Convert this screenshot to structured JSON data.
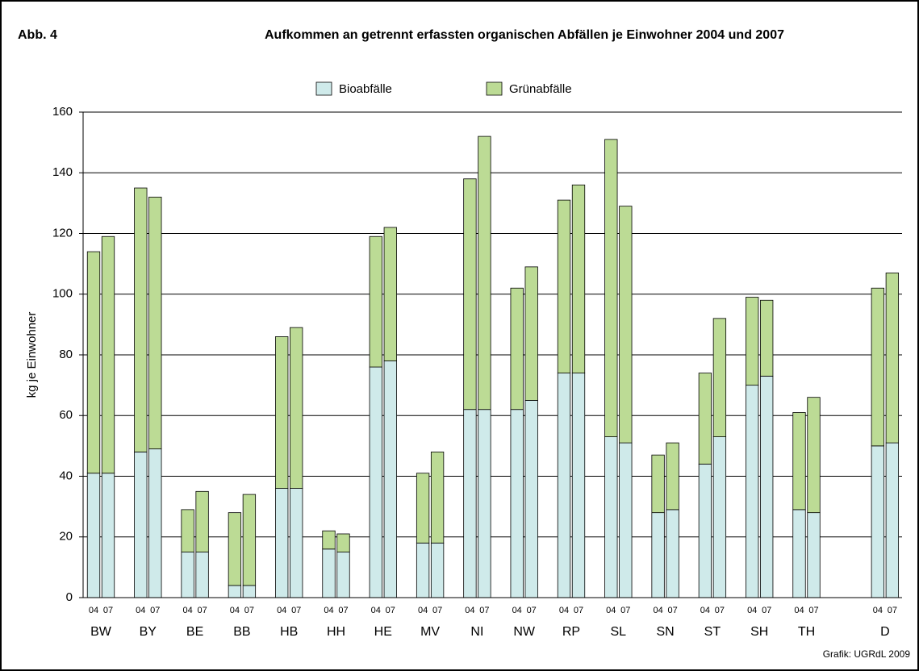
{
  "chart_data": {
    "type": "stacked_grouped_bar",
    "figure_label": "Abb. 4",
    "title": "Aufkommen an getrennt erfassten organischen Abfällen je Einwohner 2004 und 2007",
    "y_label": "kg je Einwohner",
    "source": "Grafik: UGRdL 2009",
    "categories": [
      "BW",
      "BY",
      "BE",
      "BB",
      "HB",
      "HH",
      "HE",
      "MV",
      "NI",
      "NW",
      "RP",
      "SL",
      "SN",
      "ST",
      "SH",
      "TH",
      "D"
    ],
    "periods": [
      "04",
      "07"
    ],
    "series": [
      {
        "name": "Bioabfälle",
        "color": "#cfeaea",
        "values": [
          [
            41,
            41
          ],
          [
            48,
            49
          ],
          [
            15,
            15
          ],
          [
            4,
            4
          ],
          [
            36,
            36
          ],
          [
            16,
            15
          ],
          [
            76,
            78
          ],
          [
            18,
            18
          ],
          [
            62,
            62
          ],
          [
            62,
            65
          ],
          [
            74,
            74
          ],
          [
            53,
            51
          ],
          [
            28,
            29
          ],
          [
            44,
            53
          ],
          [
            70,
            73
          ],
          [
            29,
            28
          ],
          [
            50,
            51
          ]
        ]
      },
      {
        "name": "Grünabfälle",
        "color": "#bcdb95",
        "values": [
          [
            73,
            78
          ],
          [
            87,
            83
          ],
          [
            14,
            20
          ],
          [
            24,
            30
          ],
          [
            50,
            53
          ],
          [
            6,
            6
          ],
          [
            43,
            44
          ],
          [
            23,
            30
          ],
          [
            76,
            90
          ],
          [
            40,
            44
          ],
          [
            57,
            62
          ],
          [
            98,
            78
          ],
          [
            19,
            22
          ],
          [
            30,
            39
          ],
          [
            29,
            25
          ],
          [
            32,
            38
          ],
          [
            52,
            56
          ]
        ]
      }
    ],
    "ylim": [
      0,
      160
    ],
    "yticks": [
      0,
      20,
      40,
      60,
      80,
      100,
      120,
      140,
      160
    ],
    "grid": true
  }
}
